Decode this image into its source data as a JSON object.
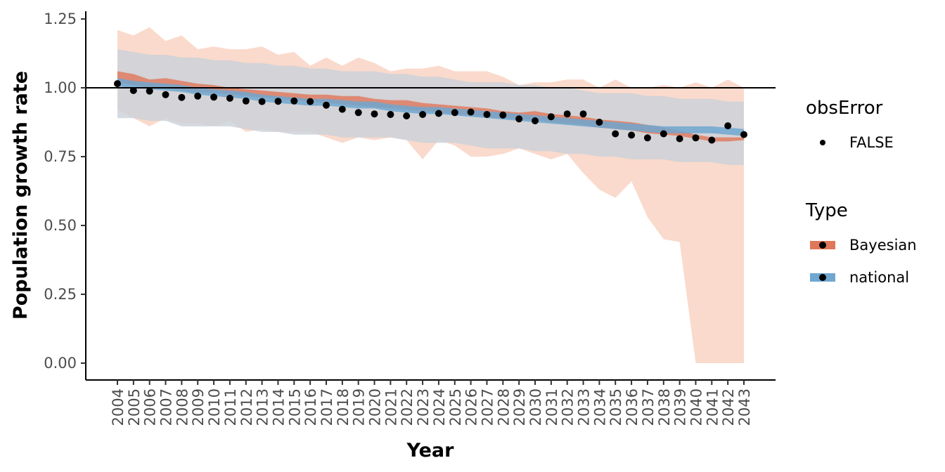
{
  "chart_data": {
    "type": "line",
    "xlabel": "Year",
    "ylabel": "Population growth rate",
    "x": [
      2004,
      2005,
      2006,
      2007,
      2008,
      2009,
      2010,
      2011,
      2012,
      2013,
      2014,
      2015,
      2016,
      2017,
      2018,
      2019,
      2020,
      2021,
      2022,
      2023,
      2024,
      2025,
      2026,
      2027,
      2028,
      2029,
      2030,
      2031,
      2032,
      2033,
      2034,
      2035,
      2036,
      2037,
      2038,
      2039,
      2040,
      2041,
      2042,
      2043
    ],
    "x_tick_labels": [
      "2004",
      "2005",
      "2006",
      "2007",
      "2008",
      "2009",
      "2010",
      "2011",
      "2012",
      "2013",
      "2014",
      "2015",
      "2016",
      "2017",
      "2018",
      "2019",
      "2020",
      "2021",
      "2022",
      "2023",
      "2024",
      "2025",
      "2026",
      "2027",
      "2028",
      "2029",
      "2030",
      "2031",
      "2032",
      "2033",
      "2034",
      "2035",
      "2036",
      "2037",
      "2038",
      "2039",
      "2040",
      "2041",
      "2042",
      "2043"
    ],
    "ylim": [
      -0.03,
      1.28
    ],
    "y_ticks": [
      0.0,
      0.25,
      0.5,
      0.75,
      1.0,
      1.25
    ],
    "y_tick_labels": [
      "0.00",
      "0.25",
      "0.50",
      "0.75",
      "1.00",
      "1.25"
    ],
    "reference_line_y": 1.0,
    "grid": false,
    "legend_placement": "right",
    "legend": {
      "obsError": {
        "title": "obsError",
        "entries": [
          {
            "label": "FALSE"
          }
        ]
      },
      "type": {
        "title": "Type",
        "entries": [
          {
            "label": "Bayesian",
            "color": "#e0775a"
          },
          {
            "label": "national",
            "color": "#6fa7d0"
          }
        ]
      }
    },
    "series": [
      {
        "name": "Bayesian",
        "color": "#e0775a",
        "band_color": "#f9d3c3",
        "outer_upper": [
          1.21,
          1.19,
          1.22,
          1.17,
          1.19,
          1.14,
          1.15,
          1.14,
          1.14,
          1.15,
          1.12,
          1.13,
          1.08,
          1.11,
          1.08,
          1.11,
          1.09,
          1.06,
          1.07,
          1.07,
          1.08,
          1.06,
          1.06,
          1.06,
          1.04,
          1.01,
          1.02,
          1.02,
          1.03,
          1.03,
          1.0,
          1.03,
          1.0,
          1.0,
          1.01,
          1.0,
          1.02,
          1.0,
          1.03,
          1.0
        ],
        "outer_lower": [
          0.92,
          0.89,
          0.86,
          0.89,
          0.87,
          0.87,
          0.86,
          0.88,
          0.84,
          0.85,
          0.84,
          0.84,
          0.84,
          0.82,
          0.8,
          0.82,
          0.81,
          0.82,
          0.81,
          0.74,
          0.81,
          0.79,
          0.75,
          0.75,
          0.76,
          0.78,
          0.76,
          0.74,
          0.76,
          0.69,
          0.63,
          0.6,
          0.66,
          0.53,
          0.45,
          0.44,
          0.0,
          0.0,
          0.0,
          0.0
        ],
        "inner_upper": [
          1.06,
          1.05,
          1.03,
          1.035,
          1.025,
          1.015,
          1.01,
          1.0,
          0.995,
          0.99,
          0.985,
          0.98,
          0.975,
          0.975,
          0.97,
          0.97,
          0.96,
          0.955,
          0.955,
          0.945,
          0.94,
          0.935,
          0.93,
          0.925,
          0.915,
          0.91,
          0.915,
          0.905,
          0.9,
          0.895,
          0.885,
          0.88,
          0.875,
          0.865,
          0.855,
          0.845,
          0.83,
          0.82,
          0.82,
          0.82
        ],
        "inner_lower": [
          1.02,
          1.01,
          1.0,
          1.0,
          0.99,
          0.985,
          0.98,
          0.975,
          0.97,
          0.965,
          0.96,
          0.955,
          0.95,
          0.945,
          0.94,
          0.935,
          0.93,
          0.925,
          0.92,
          0.915,
          0.91,
          0.905,
          0.9,
          0.895,
          0.89,
          0.885,
          0.885,
          0.875,
          0.87,
          0.865,
          0.855,
          0.85,
          0.845,
          0.835,
          0.83,
          0.825,
          0.815,
          0.805,
          0.805,
          0.81
        ]
      },
      {
        "name": "national",
        "color": "#6fa7d0",
        "band_color": "#cfe3f0",
        "outer_upper": [
          1.14,
          1.13,
          1.12,
          1.12,
          1.11,
          1.11,
          1.1,
          1.1,
          1.09,
          1.09,
          1.08,
          1.08,
          1.07,
          1.07,
          1.06,
          1.06,
          1.06,
          1.05,
          1.05,
          1.04,
          1.04,
          1.03,
          1.02,
          1.02,
          1.02,
          1.01,
          1.01,
          1.0,
          1.0,
          0.99,
          0.98,
          0.98,
          0.98,
          0.97,
          0.97,
          0.96,
          0.96,
          0.96,
          0.95,
          0.95
        ],
        "outer_lower": [
          0.89,
          0.89,
          0.88,
          0.88,
          0.86,
          0.86,
          0.86,
          0.86,
          0.85,
          0.84,
          0.84,
          0.83,
          0.83,
          0.83,
          0.82,
          0.82,
          0.82,
          0.82,
          0.81,
          0.8,
          0.8,
          0.8,
          0.79,
          0.78,
          0.78,
          0.78,
          0.77,
          0.77,
          0.76,
          0.76,
          0.75,
          0.75,
          0.74,
          0.74,
          0.74,
          0.73,
          0.73,
          0.73,
          0.72,
          0.72
        ],
        "inner_upper": [
          1.035,
          1.025,
          1.02,
          1.015,
          1.01,
          1.0,
          0.995,
          0.99,
          0.985,
          0.975,
          0.97,
          0.965,
          0.96,
          0.96,
          0.955,
          0.95,
          0.95,
          0.94,
          0.935,
          0.93,
          0.93,
          0.925,
          0.92,
          0.915,
          0.91,
          0.905,
          0.9,
          0.895,
          0.89,
          0.885,
          0.88,
          0.875,
          0.87,
          0.865,
          0.86,
          0.86,
          0.86,
          0.86,
          0.855,
          0.85
        ],
        "inner_lower": [
          1.005,
          1.0,
          0.995,
          0.99,
          0.985,
          0.975,
          0.97,
          0.965,
          0.96,
          0.95,
          0.945,
          0.94,
          0.935,
          0.935,
          0.93,
          0.925,
          0.925,
          0.915,
          0.91,
          0.905,
          0.905,
          0.9,
          0.895,
          0.89,
          0.885,
          0.88,
          0.875,
          0.87,
          0.865,
          0.86,
          0.855,
          0.85,
          0.845,
          0.84,
          0.835,
          0.835,
          0.835,
          0.835,
          0.83,
          0.825
        ]
      },
      {
        "name": "FALSE",
        "kind": "points",
        "color": "#000000",
        "values": [
          1.015,
          0.99,
          0.988,
          0.975,
          0.965,
          0.97,
          0.966,
          0.962,
          0.952,
          0.95,
          0.951,
          0.952,
          0.95,
          0.937,
          0.922,
          0.91,
          0.905,
          0.903,
          0.898,
          0.903,
          0.907,
          0.91,
          0.912,
          0.903,
          0.901,
          0.887,
          0.88,
          0.895,
          0.905,
          0.905,
          0.875,
          0.833,
          0.828,
          0.818,
          0.833,
          0.815,
          0.818,
          0.81,
          0.862,
          0.83
        ]
      }
    ]
  }
}
